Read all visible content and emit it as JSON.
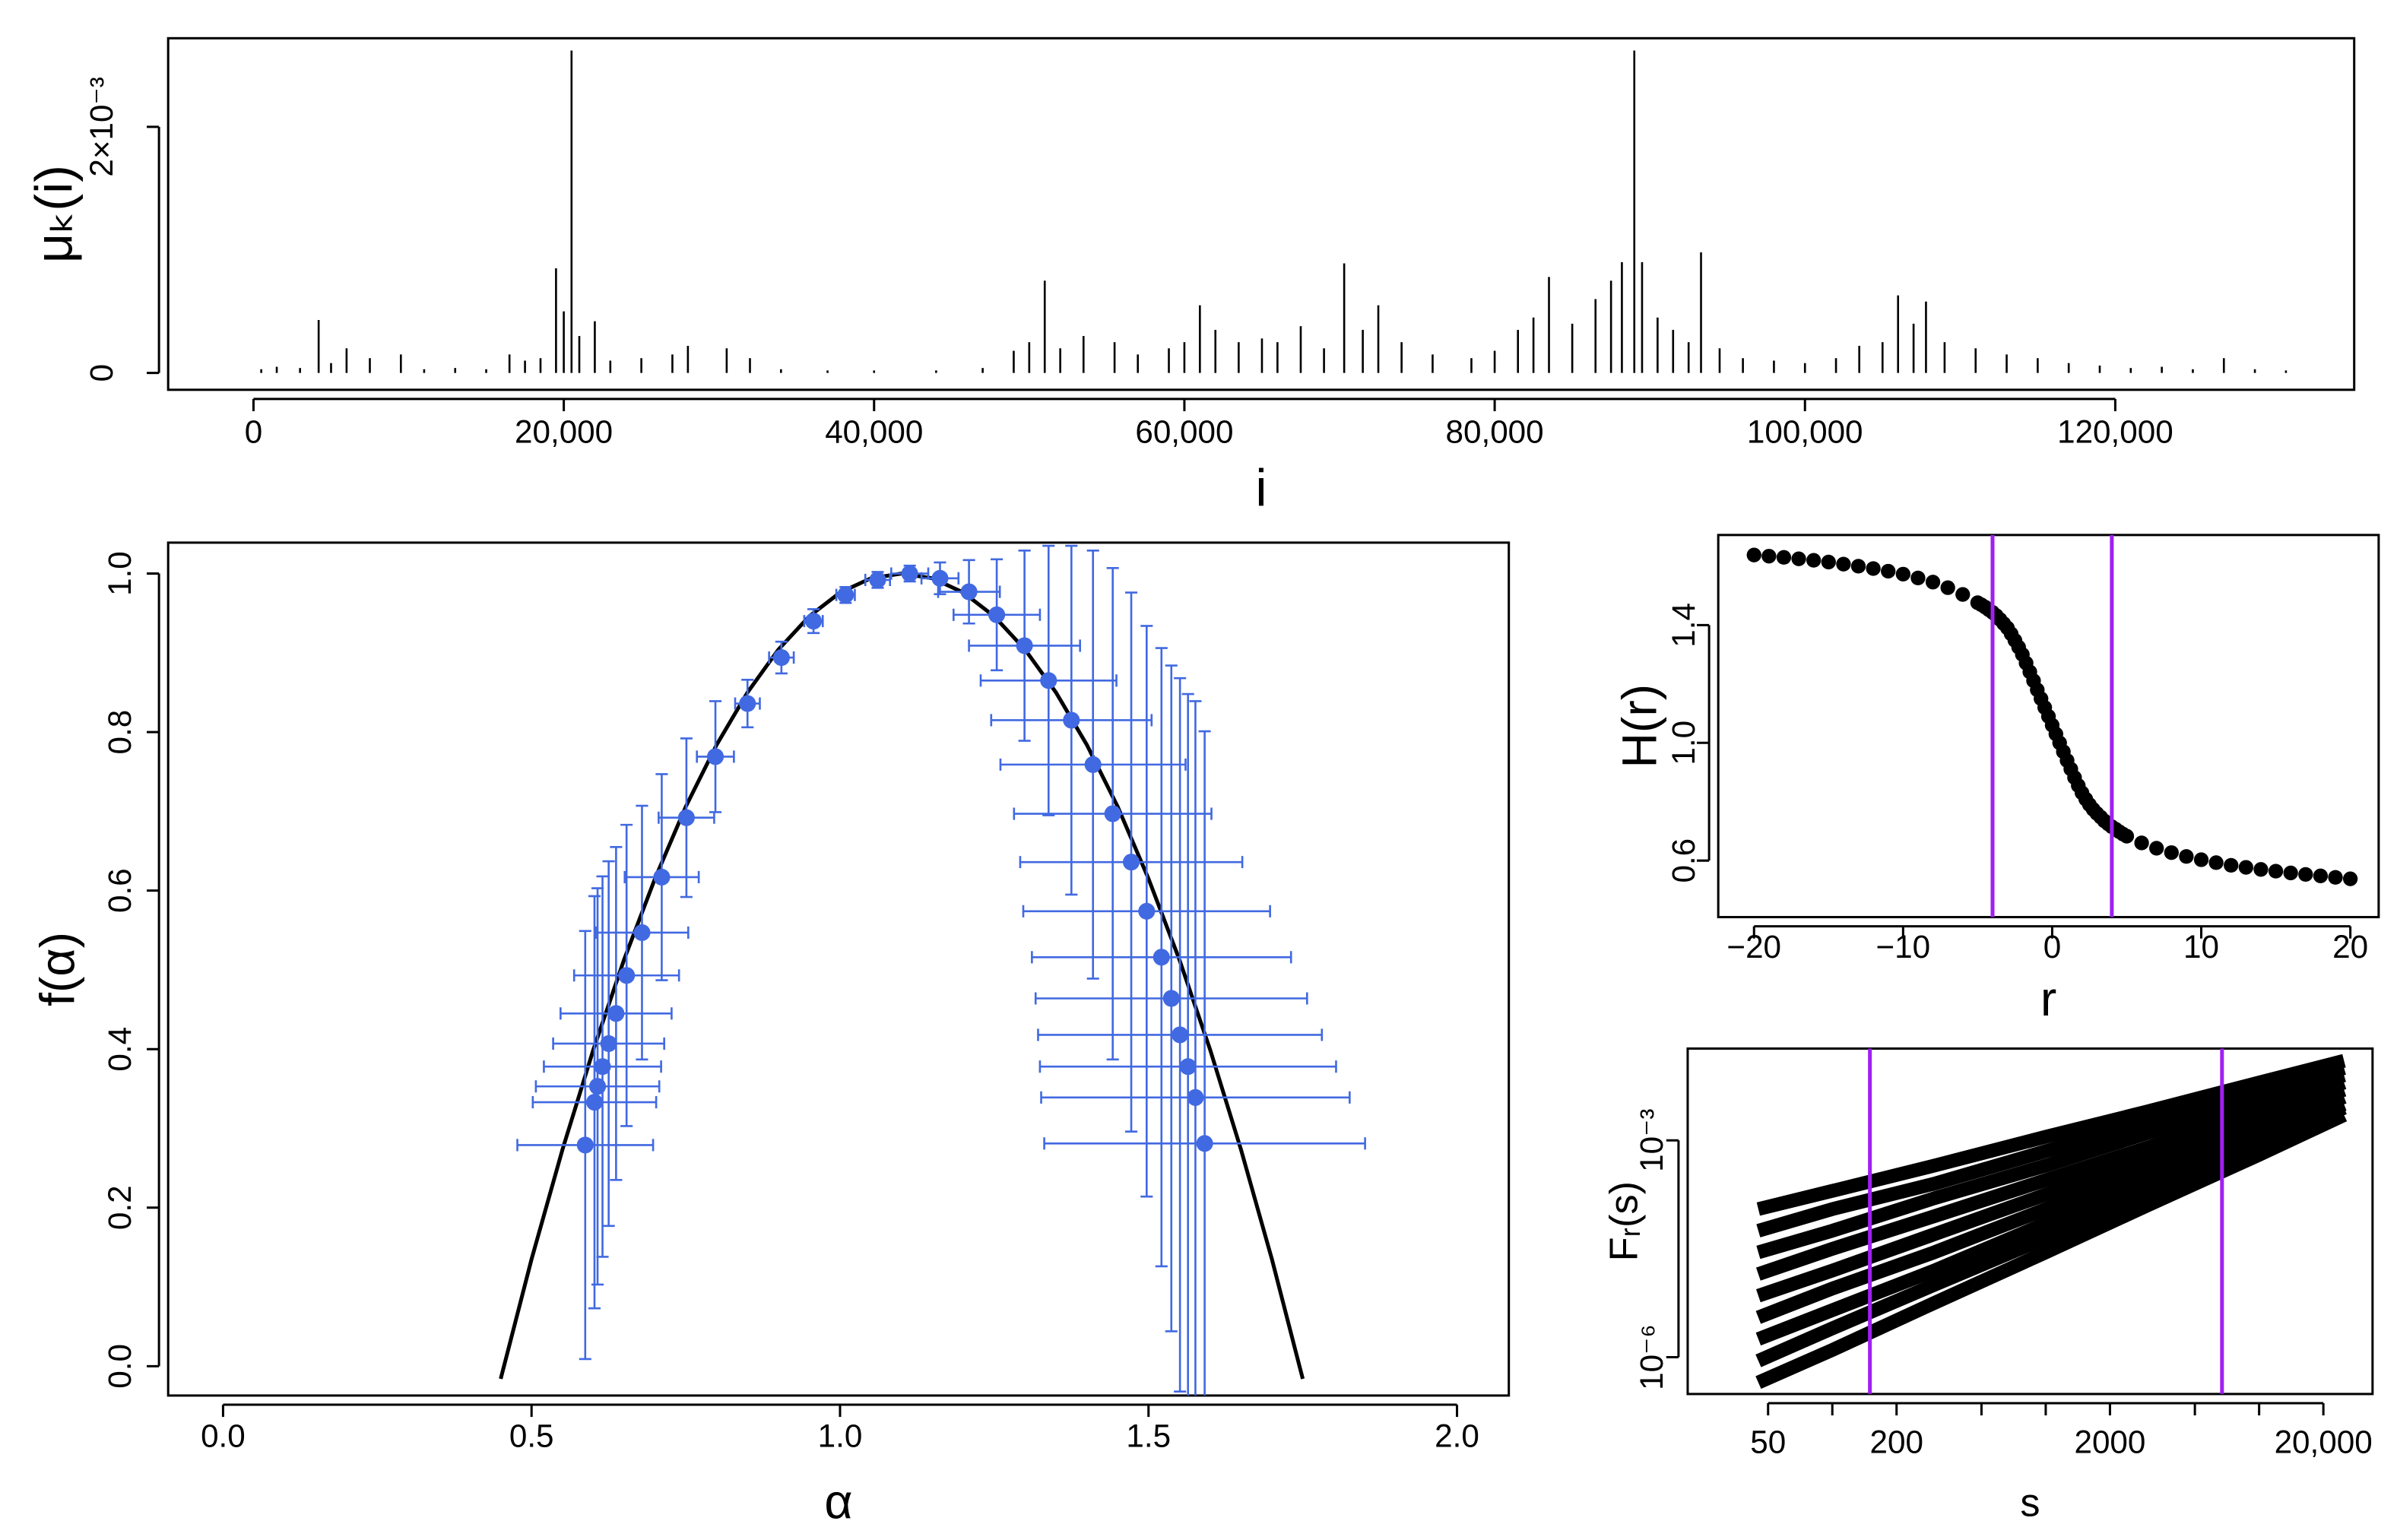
{
  "chart_data": [
    {
      "type": "spike",
      "xlabel": "i",
      "ylabel": "μₖ(i)",
      "color": "#000000",
      "x": [
        500,
        1500,
        3000,
        4200,
        5000,
        6000,
        7500,
        9500,
        11000,
        13000,
        15000,
        16500,
        17500,
        18500,
        19500,
        20000,
        20500,
        21000,
        22000,
        23000,
        25000,
        27000,
        28000,
        30500,
        32000,
        34000,
        37000,
        40000,
        44000,
        47000,
        49000,
        50000,
        51000,
        52000,
        53500,
        55500,
        57000,
        59000,
        60000,
        61000,
        62000,
        63500,
        65000,
        66000,
        67500,
        69000,
        70300,
        71500,
        72500,
        74000,
        76000,
        78500,
        80000,
        81500,
        82500,
        83500,
        85000,
        86500,
        87500,
        88200,
        89000,
        89500,
        90500,
        91500,
        92500,
        93300,
        94500,
        96000,
        98000,
        100000,
        102000,
        103500,
        105000,
        106000,
        107000,
        107800,
        109000,
        111000,
        113000,
        115000,
        117000,
        119000,
        121000,
        123000,
        125000,
        127000,
        129000,
        131000
      ],
      "values": [
        3e-05,
        5e-05,
        4e-05,
        0.00043,
        8e-05,
        0.0002,
        0.00012,
        0.00015,
        3e-05,
        4e-05,
        3e-05,
        0.00015,
        0.0001,
        0.00012,
        0.00085,
        0.0005,
        0.00262,
        0.0003,
        0.00042,
        0.0001,
        0.00012,
        0.00015,
        0.00022,
        0.0002,
        0.00012,
        3e-05,
        2e-05,
        2e-05,
        2e-05,
        4e-05,
        0.00018,
        0.00025,
        0.00075,
        0.0002,
        0.0003,
        0.00025,
        0.00015,
        0.0002,
        0.00025,
        0.00055,
        0.00035,
        0.00025,
        0.00028,
        0.00025,
        0.00038,
        0.0002,
        0.00089,
        0.00035,
        0.00055,
        0.00025,
        0.00015,
        0.00012,
        0.00018,
        0.00035,
        0.00045,
        0.00078,
        0.0004,
        0.0006,
        0.00075,
        0.0009,
        0.00262,
        0.0009,
        0.00045,
        0.00035,
        0.00025,
        0.00098,
        0.0002,
        0.00012,
        0.0001,
        8e-05,
        0.00012,
        0.00022,
        0.00025,
        0.00063,
        0.0004,
        0.00058,
        0.00025,
        0.0002,
        0.00015,
        0.00012,
        8e-05,
        6e-05,
        4e-05,
        5e-05,
        3e-05,
        0.00012,
        3e-05,
        2e-05
      ],
      "xlim": [
        -5500,
        135400
      ],
      "ylim": [
        -0.000137,
        0.00272
      ],
      "xticks": [
        0,
        {
          "value": 20000,
          "label": "20,000"
        },
        {
          "value": 40000,
          "label": "40,000"
        },
        {
          "value": 60000,
          "label": "60,000"
        },
        {
          "value": 80000,
          "label": "80,000"
        },
        {
          "value": 100000,
          "label": "100,000"
        },
        {
          "value": 120000,
          "label": "120,000"
        }
      ],
      "yticks": [
        0,
        {
          "value": 0.002,
          "label": "2×10⁻³"
        }
      ]
    },
    {
      "type": "scatter",
      "xlabel": "α",
      "ylabel": "f(α)",
      "color": "#4169e1",
      "x": [
        0.587,
        0.602,
        0.607,
        0.615,
        0.625,
        0.637,
        0.654,
        0.679,
        0.711,
        0.751,
        0.798,
        0.85,
        0.905,
        0.957,
        1.009,
        1.061,
        1.113,
        1.162,
        1.209,
        1.254,
        1.299,
        1.338,
        1.375,
        1.41,
        1.442,
        1.472,
        1.497,
        1.521,
        1.537,
        1.551,
        1.564,
        1.576,
        1.591
      ],
      "values": [
        0.279,
        0.333,
        0.353,
        0.378,
        0.407,
        0.445,
        0.493,
        0.547,
        0.617,
        0.692,
        0.769,
        0.836,
        0.894,
        0.94,
        0.973,
        0.992,
        1.0,
        0.994,
        0.977,
        0.948,
        0.909,
        0.865,
        0.815,
        0.759,
        0.697,
        0.636,
        0.574,
        0.516,
        0.464,
        0.418,
        0.378,
        0.339,
        0.281
      ],
      "xerr": [
        0.11,
        0.1,
        0.1,
        0.095,
        0.09,
        0.09,
        0.085,
        0.075,
        0.06,
        0.045,
        0.03,
        0.02,
        0.02,
        0.015,
        0.015,
        0.02,
        0.03,
        0.03,
        0.05,
        0.07,
        0.09,
        0.11,
        0.13,
        0.15,
        0.16,
        0.18,
        0.2,
        0.21,
        0.22,
        0.23,
        0.24,
        0.25,
        0.26
      ],
      "yerr": [
        0.27,
        0.26,
        0.25,
        0.24,
        0.23,
        0.21,
        0.19,
        0.16,
        0.13,
        0.1,
        0.07,
        0.03,
        0.02,
        0.015,
        0.01,
        0.01,
        0.01,
        0.02,
        0.04,
        0.07,
        0.12,
        0.17,
        0.22,
        0.27,
        0.31,
        0.34,
        0.36,
        0.39,
        0.42,
        0.45,
        0.47,
        0.5,
        0.52
      ],
      "curve": {
        "color": "#000000",
        "x": [
          0.45,
          0.5,
          0.55,
          0.6,
          0.65,
          0.7,
          0.75,
          0.8,
          0.85,
          0.9,
          0.95,
          1.0,
          1.05,
          1.1,
          1.15,
          1.2,
          1.25,
          1.3,
          1.35,
          1.4,
          1.45,
          1.5,
          1.55,
          1.6,
          1.65,
          1.7,
          1.75
        ],
        "values": [
          -0.016,
          0.135,
          0.273,
          0.399,
          0.513,
          0.615,
          0.706,
          0.784,
          0.85,
          0.904,
          0.946,
          0.976,
          0.994,
          1,
          0.994,
          0.976,
          0.946,
          0.904,
          0.85,
          0.784,
          0.706,
          0.615,
          0.513,
          0.399,
          0.273,
          0.135,
          -0.016
        ]
      },
      "xlim": [
        -0.089,
        2.084
      ],
      "ylim": [
        -0.037,
        1.039
      ],
      "xticks": [
        {
          "value": 0,
          "label": "0.0"
        },
        0.5,
        {
          "value": 1,
          "label": "1.0"
        },
        1.5,
        {
          "value": 2,
          "label": "2.0"
        }
      ],
      "yticks": [
        {
          "value": 0,
          "label": "0.0"
        },
        0.2,
        0.4,
        0.6,
        0.8,
        {
          "value": 1,
          "label": "1.0"
        }
      ]
    },
    {
      "type": "scatter",
      "xlabel": "r",
      "ylabel": "H(r)",
      "color": "#000000",
      "x": [
        -20,
        -19,
        -18,
        -17,
        -16,
        -15,
        -14,
        -13,
        -12,
        -11,
        -10,
        -9,
        -8,
        -7,
        -6,
        -5,
        -4.75,
        -4.5,
        -4.25,
        -4,
        -3.75,
        -3.5,
        -3.25,
        -3,
        -2.75,
        -2.5,
        -2.25,
        -2,
        -1.75,
        -1.5,
        -1.25,
        -1,
        -0.75,
        -0.5,
        -0.25,
        0,
        0.25,
        0.5,
        0.75,
        1,
        1.25,
        1.5,
        1.75,
        2,
        2.25,
        2.5,
        2.75,
        3,
        3.25,
        3.5,
        3.75,
        4,
        4.25,
        4.5,
        4.75,
        5,
        6,
        7,
        8,
        9,
        10,
        11,
        12,
        13,
        14,
        15,
        16,
        17,
        18,
        19,
        20
      ],
      "values": [
        1.638,
        1.634,
        1.63,
        1.625,
        1.62,
        1.614,
        1.607,
        1.6,
        1.592,
        1.583,
        1.573,
        1.56,
        1.546,
        1.527,
        1.504,
        1.476,
        1.469,
        1.461,
        1.452,
        1.443,
        1.432,
        1.419,
        1.405,
        1.39,
        1.37,
        1.348,
        1.325,
        1.3,
        1.271,
        1.241,
        1.211,
        1.18,
        1.15,
        1.12,
        1.09,
        1.06,
        1.03,
        1.0,
        0.97,
        0.94,
        0.911,
        0.882,
        0.855,
        0.83,
        0.809,
        0.79,
        0.774,
        0.76,
        0.748,
        0.735,
        0.725,
        0.715,
        0.707,
        0.698,
        0.69,
        0.683,
        0.66,
        0.642,
        0.627,
        0.614,
        0.603,
        0.593,
        0.584,
        0.577,
        0.57,
        0.564,
        0.558,
        0.553,
        0.548,
        0.543,
        0.538
      ],
      "vlines": [
        -4,
        4
      ],
      "vline_color": "#a020f0",
      "xlim": [
        -22.4,
        21.9
      ],
      "ylim": [
        0.408,
        1.706
      ],
      "xticks": [
        {
          "value": -20,
          "label": "−20"
        },
        {
          "value": -10,
          "label": "−10"
        },
        0,
        10,
        20
      ],
      "yticks": [
        0.6,
        {
          "value": 1,
          "label": "1.0"
        },
        1.4
      ]
    },
    {
      "type": "line",
      "xlabel": "s",
      "ylabel": "Fᵣ(s)",
      "color": "#000000",
      "xlog": true,
      "ylog": true,
      "x": [
        45,
        100,
        300,
        1000,
        3000,
        10000,
        25000
      ],
      "series": [
        {
          "values": [
            0.000112,
            0.0002,
            0.000447,
            0.00112,
            0.00251,
            0.00631,
            0.0126
          ]
        },
        {
          "values": [
            5.62e-05,
            0.000112,
            0.000251,
            0.000708,
            0.00178,
            0.00447,
            0.01
          ]
        },
        {
          "values": [
            2.82e-05,
            5.62e-05,
            0.000158,
            0.000447,
            0.00126,
            0.00355,
            0.00794
          ]
        },
        {
          "values": [
            1.41e-05,
            3.16e-05,
            8.91e-05,
            0.000282,
            0.000794,
            0.00251,
            0.00631
          ]
        },
        {
          "values": [
            7.08e-06,
            1.58e-05,
            5.01e-05,
            0.000178,
            0.000562,
            0.002,
            0.00501
          ]
        },
        {
          "values": [
            3.55e-06,
            8.91e-06,
            2.82e-05,
            0.000112,
            0.000398,
            0.00141,
            0.00398
          ]
        },
        {
          "values": [
            1.78e-06,
            4.47e-06,
            1.58e-05,
            7.08e-05,
            0.000251,
            0.00112,
            0.00316
          ]
        },
        {
          "values": [
            8.91e-07,
            2.51e-06,
            1e-05,
            4.47e-05,
            0.0002,
            0.000891,
            0.00282
          ]
        },
        {
          "values": [
            4.47e-07,
            1.26e-06,
            5.62e-06,
            2.82e-05,
            0.000126,
            0.000631,
            0.00224
          ]
        }
      ],
      "vlines": [
        150,
        6700
      ],
      "vline_color": "#a020f0",
      "xlim": [
        21,
        34000
      ],
      "ylim": [
        3.1e-07,
        0.0186
      ],
      "xticks": [
        50,
        200,
        2000,
        {
          "value": 20000,
          "label": "20,000"
        }
      ],
      "xminor_ticks": [
        100,
        500,
        1000,
        5000,
        10000
      ],
      "yticks": [
        {
          "value": 1e-06,
          "label": "10⁻⁶"
        },
        {
          "value": 0.001,
          "label": "10⁻³"
        }
      ]
    }
  ]
}
